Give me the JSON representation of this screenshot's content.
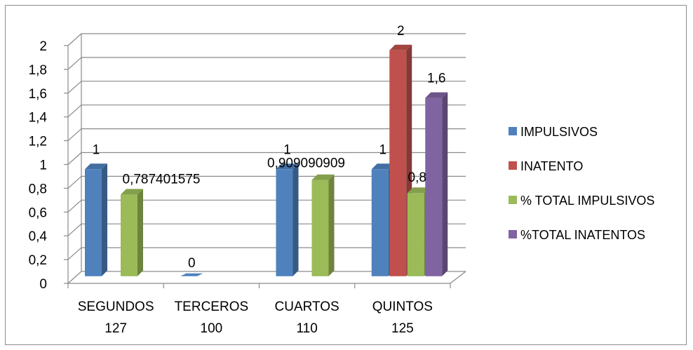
{
  "chart_data": {
    "type": "bar",
    "categories": [
      "SEGUNDOS 127",
      "TERCEROS 100",
      "CUARTOS 110",
      "QUINTOS 125"
    ],
    "category_lines": [
      [
        "SEGUNDOS",
        "127"
      ],
      [
        "TERCEROS",
        "100"
      ],
      [
        "CUARTOS",
        "110"
      ],
      [
        "QUINTOS",
        "125"
      ]
    ],
    "series": [
      {
        "name": "IMPULSIVOS",
        "color": "#4f81bd",
        "values": [
          1,
          0,
          1,
          1
        ],
        "labels": [
          "1",
          "0",
          "1",
          "1"
        ]
      },
      {
        "name": "INATENTO",
        "color": "#c0504d",
        "values": [
          null,
          null,
          null,
          2
        ],
        "labels": [
          null,
          null,
          null,
          "2"
        ]
      },
      {
        "name": "% TOTAL IMPULSIVOS",
        "color": "#9bbb59",
        "values": [
          0.787401575,
          null,
          0.909090909,
          0.8
        ],
        "labels": [
          "0,787401575",
          null,
          "0,909090909",
          "0,8"
        ]
      },
      {
        "name": "%TOTAL INATENTOS",
        "color": "#8064a2",
        "values": [
          null,
          null,
          null,
          1.6
        ],
        "labels": [
          null,
          null,
          null,
          "1,6"
        ]
      }
    ],
    "y_ticks": [
      "0",
      "0,2",
      "0,4",
      "0,6",
      "0,8",
      "1",
      "1,2",
      "1,4",
      "1,6",
      "1,8",
      "2"
    ],
    "ylim": [
      0,
      2
    ],
    "grid": true,
    "legend_position": "right",
    "style": "3d-clustered-column"
  }
}
